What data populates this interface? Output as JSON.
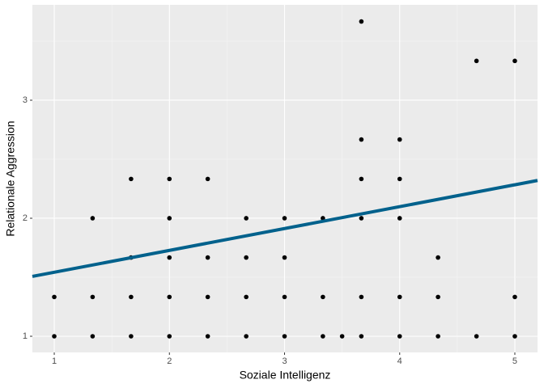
{
  "chart_data": {
    "type": "scatter",
    "x_label": "Soziale Intelligenz",
    "y_label": "Relationale Aggression",
    "x": [
      1,
      1,
      1.333,
      1.333,
      1.333,
      1.667,
      1.667,
      1.667,
      1.667,
      2,
      2,
      2,
      2,
      2,
      2.333,
      2.333,
      2.333,
      2.333,
      2.667,
      2.667,
      2.667,
      2.667,
      3,
      3,
      3,
      3,
      3.333,
      3.333,
      3.333,
      3.5,
      3.667,
      3.667,
      3.667,
      3.667,
      3.667,
      3.667,
      4,
      4,
      4,
      4,
      4,
      4.333,
      4.333,
      4.333,
      4.667,
      4.667,
      5,
      5,
      5
    ],
    "y": [
      1,
      1.333,
      1,
      1.333,
      2,
      1,
      1.333,
      1.667,
      2.333,
      1,
      1.333,
      1.667,
      2,
      2.333,
      1,
      1.333,
      1.667,
      2.333,
      1,
      1.333,
      1.667,
      2,
      1,
      1.333,
      1.667,
      2,
      1,
      1.333,
      2,
      1,
      1,
      1.333,
      2,
      2.333,
      2.667,
      3.667,
      1,
      1.333,
      2,
      2.333,
      2.667,
      1,
      1.333,
      1.667,
      1,
      3.333,
      1,
      1.333,
      3.333
    ],
    "color": "#000000",
    "fit_line": {
      "x": [
        0.81,
        5.197
      ],
      "y": [
        1.507,
        2.32
      ],
      "color": "#00618c"
    },
    "xlim": [
      0.81,
      5.197
    ],
    "ylim": [
      0.863,
      3.808
    ],
    "xticks": [
      1,
      2,
      3,
      4,
      5
    ],
    "yticks": [
      1,
      2,
      3
    ],
    "x_minor_ticks": [
      1.5,
      2.5,
      3.5,
      4.5
    ],
    "y_minor_ticks": [
      1.5,
      2.5,
      3.5
    ],
    "grid": true
  }
}
